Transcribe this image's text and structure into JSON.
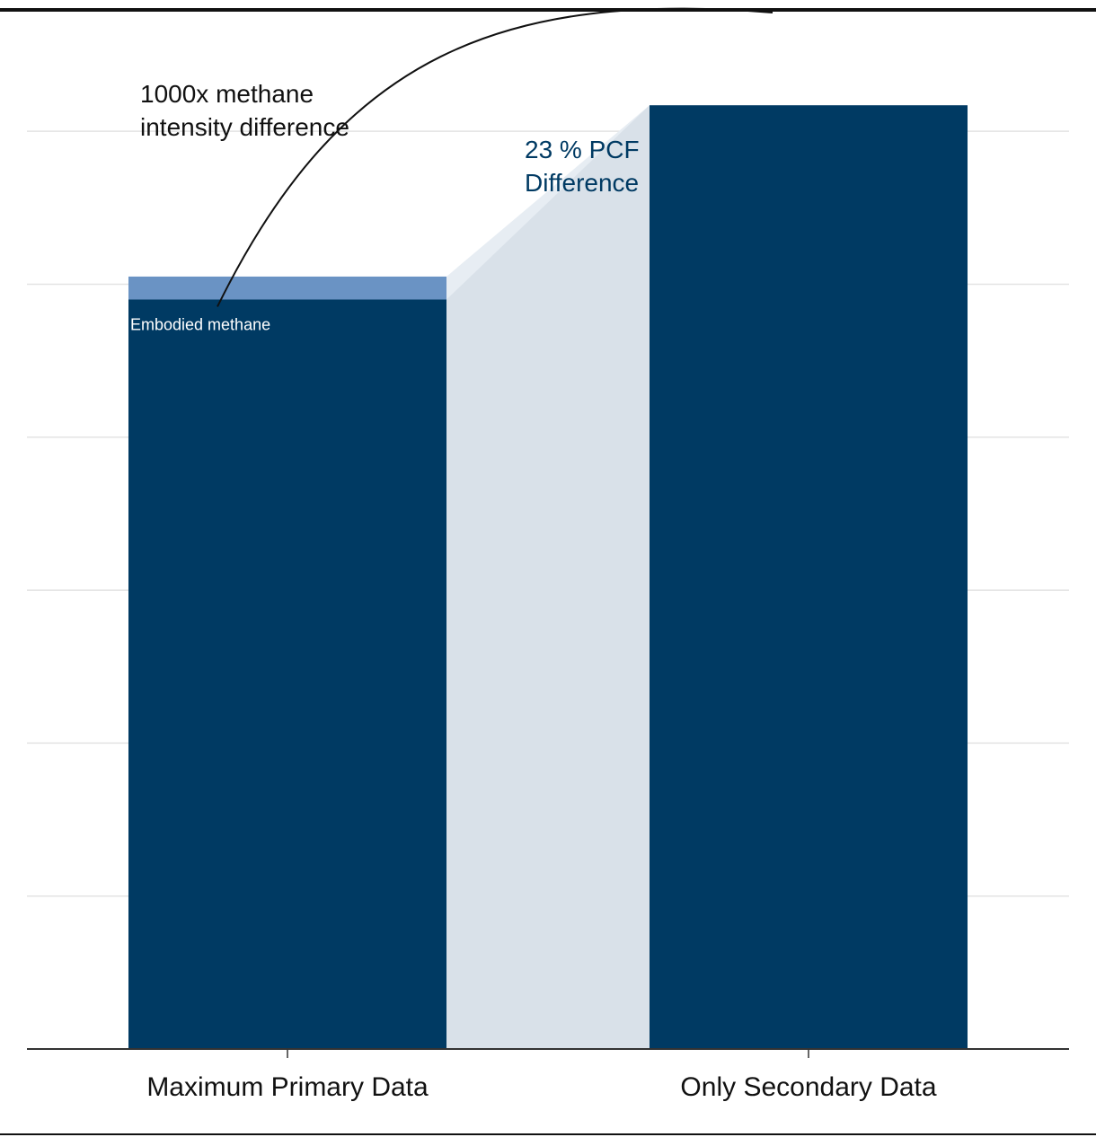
{
  "chart_data": {
    "type": "bar",
    "categories": [
      "Maximum Primary Data",
      "Only Secondary Data"
    ],
    "series": [
      {
        "name": "",
        "values": [
          4.9,
          6.17
        ]
      },
      {
        "name": "Embodied methane",
        "values": [
          0.15,
          0
        ]
      }
    ],
    "ylim": [
      0,
      6.5
    ],
    "y_grid": [
      0,
      1,
      2,
      3,
      4,
      5,
      6
    ],
    "grid": true,
    "xlabel": "",
    "ylabel": "",
    "annotations": {
      "methane_note": [
        "1000x methane",
        "intensity difference"
      ],
      "pcf_note": [
        "23 % PCF",
        "Difference"
      ],
      "segment_label": "Embodied methane"
    },
    "colors": {
      "bar": "#003a63",
      "methane": "#6a93c4",
      "bridge": "#d9e1e9",
      "bridge_light": "#e7edf3",
      "grid": "#e3e3e3",
      "axis": "#333333",
      "text": "#111111",
      "pcf_text": "#003a63",
      "frame": "#111111"
    }
  }
}
